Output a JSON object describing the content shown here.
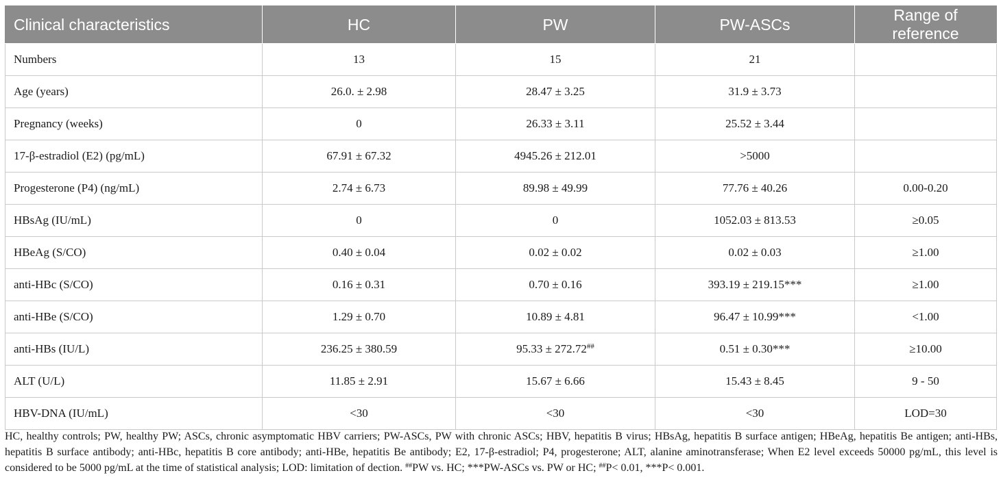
{
  "table": {
    "headers": [
      "Clinical characteristics",
      "HC",
      "PW",
      "PW-ASCs",
      "Range of reference"
    ],
    "rows": [
      {
        "label": "Numbers",
        "hc": "13",
        "pw": "15",
        "pw_ascs": "21",
        "ref": ""
      },
      {
        "label": "Age (years)",
        "hc": "26.0. ± 2.98",
        "pw": "28.47 ± 3.25",
        "pw_ascs": "31.9 ± 3.73",
        "ref": ""
      },
      {
        "label": "Pregnancy (weeks)",
        "hc": "0",
        "pw": "26.33 ± 3.11",
        "pw_ascs": "25.52 ± 3.44",
        "ref": ""
      },
      {
        "label": "17-β-estradiol (E2) (pg/mL)",
        "hc": "67.91 ± 67.32",
        "pw": "4945.26 ± 212.01",
        "pw_ascs": ">5000",
        "ref": ""
      },
      {
        "label": "Progesterone (P4) (ng/mL)",
        "hc": "2.74 ± 6.73",
        "pw": "89.98 ± 49.99",
        "pw_ascs": "77.76 ± 40.26",
        "ref": "0.00-0.20"
      },
      {
        "label": "HBsAg (IU/mL)",
        "hc": "0",
        "pw": "0",
        "pw_ascs": "1052.03 ± 813.53",
        "ref": "≥0.05"
      },
      {
        "label": "HBeAg (S/CO)",
        "hc": "0.40 ± 0.04",
        "pw": "0.02 ± 0.02",
        "pw_ascs": "0.02 ± 0.03",
        "ref": "≥1.00"
      },
      {
        "label": "anti-HBc (S/CO)",
        "hc": "0.16 ± 0.31",
        "pw": "0.70 ± 0.16",
        "pw_ascs": "393.19 ± 219.15***",
        "ref": "≥1.00"
      },
      {
        "label": "anti-HBe (S/CO)",
        "hc": "1.29 ± 0.70",
        "pw": "10.89 ± 4.81",
        "pw_ascs": "96.47 ± 10.99***",
        "ref": "<1.00"
      },
      {
        "label": "anti-HBs (IU/L)",
        "hc": "236.25 ± 380.59",
        "pw": "95.33 ± 272.72",
        "pw_sup": "##",
        "pw_ascs": "0.51 ± 0.30***",
        "ref": "≥10.00"
      },
      {
        "label": "ALT (U/L)",
        "hc": "11.85 ± 2.91",
        "pw": "15.67 ± 6.66",
        "pw_ascs": "15.43 ± 8.45",
        "ref": "9 - 50"
      },
      {
        "label": "HBV-DNA (IU/mL)",
        "hc": "<30",
        "pw": "<30",
        "pw_ascs": "<30",
        "ref": "LOD=30"
      }
    ]
  },
  "footnote": {
    "part1": "HC, healthy controls; PW, healthy PW; ASCs, chronic asymptomatic HBV carriers; PW-ASCs, PW with chronic ASCs; HBV, hepatitis B virus; HBsAg, hepatitis B surface antigen; HBeAg, hepatitis Be antigen; anti-HBs, hepatitis B surface antibody; anti-HBc, hepatitis B core antibody; anti-HBe, hepatitis Be antibody; E2, 17-β-estradiol; P4, progesterone; ALT, alanine aminotransferase; When E2 level exceeds 50000 pg/mL, this level is considered to be 5000 pg/mL at the time of statistical analysis; LOD: limitation of dection. ",
    "sup1": "##",
    "part2": "PW vs. HC; ***PW-ASCs vs. PW or HC; ",
    "sup2": "##",
    "part3": "P< 0.01, ***P< 0.001."
  }
}
